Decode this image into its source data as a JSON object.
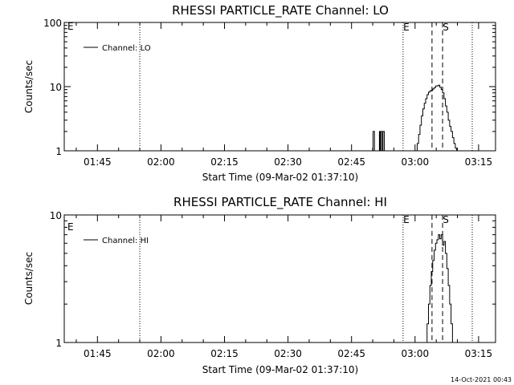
{
  "footer_timestamp": "14-Oct-2021 00:43",
  "chart_data": [
    {
      "type": "line",
      "title": "RHESSI PARTICLE_RATE Channel: LO",
      "xlabel": "Start Time (09-Mar-02 01:37:10)",
      "ylabel": "Counts/sec",
      "yscale": "log",
      "ylim": [
        1,
        100
      ],
      "xlim": [
        "01:37:10",
        "03:19:00"
      ],
      "x_ticks": [
        "01:45",
        "02:00",
        "02:15",
        "02:30",
        "02:45",
        "03:00",
        "03:15"
      ],
      "y_ticks": [
        "1",
        "10",
        "100"
      ],
      "legend": {
        "position": "top-left",
        "entries": [
          "Channel: LO"
        ]
      },
      "markers": [
        {
          "time": "01:55:00",
          "label": "",
          "style": "dotted"
        },
        {
          "time": "02:57:10",
          "label": "E",
          "style": "dotted"
        },
        {
          "time": "03:04:00",
          "label": "",
          "style": "dashed"
        },
        {
          "time": "03:06:30",
          "label": "S",
          "style": "dashed"
        },
        {
          "time": "03:13:30",
          "label": "",
          "style": "dotted"
        }
      ],
      "corner_label": "E",
      "series": [
        {
          "x": [
            "02:49:55",
            "02:50:05",
            "02:50:15",
            "02:50:25",
            "02:51:25",
            "02:51:35",
            "02:51:45",
            "02:51:55",
            "02:52:05",
            "02:52:15",
            "02:52:25",
            "02:52:35",
            "02:52:45",
            "02:52:55",
            "03:00:10",
            "03:00:30",
            "03:00:50",
            "03:01:10",
            "03:01:30",
            "03:01:50",
            "03:02:10",
            "03:02:30",
            "03:02:50",
            "03:03:10",
            "03:03:30",
            "03:03:50",
            "03:04:10",
            "03:04:30",
            "03:04:50",
            "03:05:10",
            "03:05:30",
            "03:05:50",
            "03:06:10",
            "03:06:30",
            "03:06:50",
            "03:07:10",
            "03:07:30",
            "03:07:50",
            "03:08:10",
            "03:08:30",
            "03:08:50",
            "03:09:10",
            "03:09:30",
            "03:09:50",
            "03:10:10"
          ],
          "y": [
            1,
            2.0,
            2.0,
            1,
            1,
            2.0,
            1,
            2.0,
            2.0,
            1,
            2.0,
            2.0,
            1,
            1,
            1,
            1.3,
            1.8,
            2.5,
            3.5,
            4.5,
            5.5,
            6.5,
            7.5,
            8.2,
            8.6,
            8.8,
            9.2,
            9.6,
            10.2,
            10.3,
            10.5,
            9.8,
            9.0,
            8.0,
            6.5,
            5.0,
            4.0,
            3.0,
            2.4,
            2.0,
            1.6,
            1.3,
            1.1,
            1,
            1
          ]
        }
      ]
    },
    {
      "type": "line",
      "title": "RHESSI PARTICLE_RATE Channel: HI",
      "xlabel": "Start Time (09-Mar-02 01:37:10)",
      "ylabel": "Counts/sec",
      "yscale": "log",
      "ylim": [
        1,
        10
      ],
      "xlim": [
        "01:37:10",
        "03:19:00"
      ],
      "x_ticks": [
        "01:45",
        "02:00",
        "02:15",
        "02:30",
        "02:45",
        "03:00",
        "03:15"
      ],
      "y_ticks": [
        "1",
        "10"
      ],
      "legend": {
        "position": "top-left",
        "entries": [
          "Channel: HI"
        ]
      },
      "markers": [
        {
          "time": "01:55:00",
          "label": "",
          "style": "dotted"
        },
        {
          "time": "02:57:10",
          "label": "E",
          "style": "dotted"
        },
        {
          "time": "03:04:00",
          "label": "",
          "style": "dashed"
        },
        {
          "time": "03:06:30",
          "label": "S",
          "style": "dashed"
        },
        {
          "time": "03:13:30",
          "label": "",
          "style": "dotted"
        }
      ],
      "corner_label": "E",
      "series": [
        {
          "x": [
            "03:02:30",
            "03:02:50",
            "03:03:10",
            "03:03:30",
            "03:03:50",
            "03:04:10",
            "03:04:30",
            "03:04:50",
            "03:05:10",
            "03:05:30",
            "03:05:50",
            "03:06:10",
            "03:06:30",
            "03:06:50",
            "03:07:10",
            "03:07:30",
            "03:07:50",
            "03:08:10",
            "03:08:30",
            "03:08:50"
          ],
          "y": [
            1,
            1.4,
            2.0,
            2.8,
            3.6,
            4.4,
            5.3,
            6.0,
            6.4,
            7.0,
            6.5,
            7.0,
            5.8,
            6.2,
            5.0,
            3.8,
            2.8,
            2.0,
            1.4,
            1
          ]
        }
      ]
    }
  ]
}
